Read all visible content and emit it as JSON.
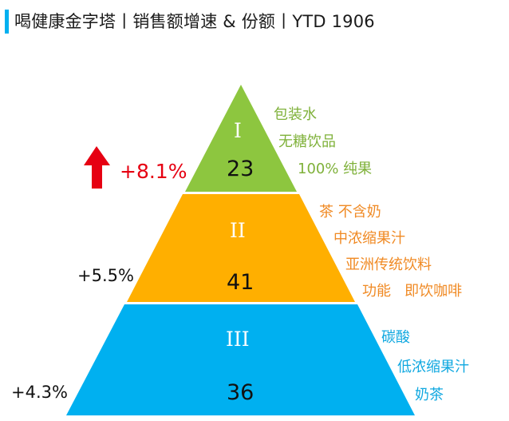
{
  "header": {
    "title": "喝健康金字塔丨销售额增速 & 份额丨YTD 1906"
  },
  "colors": {
    "accent_bar": "#00b0f0",
    "tier1_green": "#8dc63f",
    "tier2_orange": "#ffaf00",
    "tier3_blue": "#00b0f0",
    "up_arrow_red": "#e60012"
  },
  "tiers": [
    {
      "numeral": "I",
      "share": "23",
      "growth": "+8.1%",
      "arrow": "up-arrow-icon",
      "categories": [
        "包装水",
        "无糖饮品",
        "100% 纯果"
      ]
    },
    {
      "numeral": "II",
      "share": "41",
      "growth": "+5.5%",
      "categories": [
        "茶 不含奶",
        "中浓缩果汁",
        "亚洲传统饮料",
        "功能   即饮咖啡"
      ]
    },
    {
      "numeral": "III",
      "share": "36",
      "growth": "+4.3%",
      "categories": [
        "碳酸",
        "低浓缩果汁",
        "奶茶"
      ]
    }
  ]
}
